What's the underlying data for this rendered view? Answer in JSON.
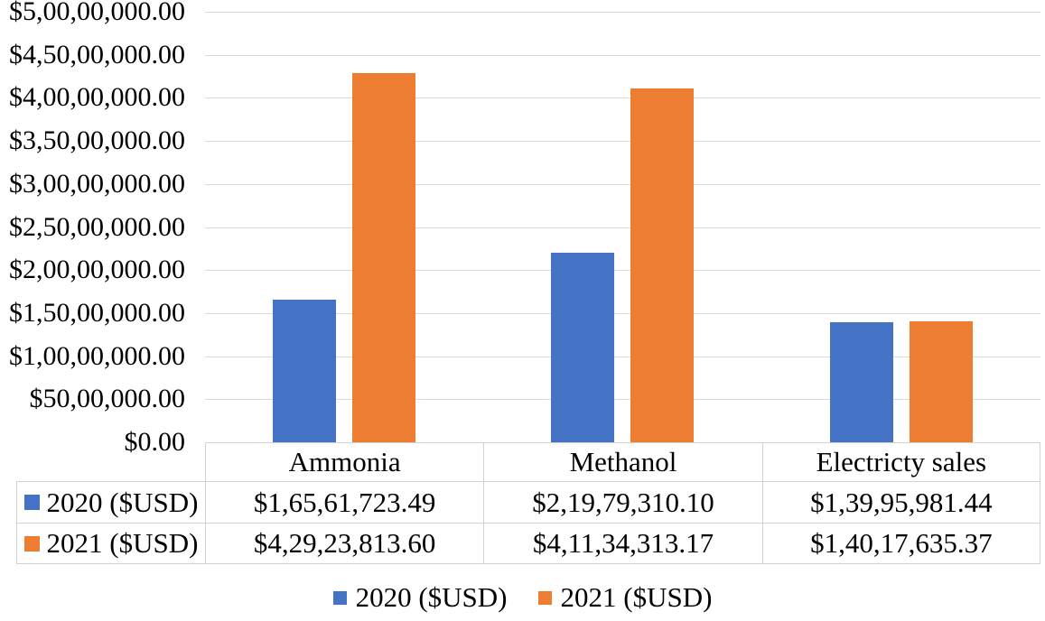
{
  "colors": {
    "series_2020": "#4472C4",
    "series_2021": "#ED7D31",
    "gridline": "#D9D9D9",
    "table_border": "#D2D2D2",
    "text": "#000000",
    "background": "#FFFFFF"
  },
  "y_axis": {
    "ticks": [
      "$5,00,00,000.00",
      "$4,50,00,000.00",
      "$4,00,00,000.00",
      "$3,50,00,000.00",
      "$3,00,00,000.00",
      "$2,50,00,000.00",
      "$2,00,00,000.00",
      "$1,50,00,000.00",
      "$1,00,00,000.00",
      "$50,00,000.00",
      "$0.00"
    ]
  },
  "chart_data": {
    "type": "bar",
    "title": "",
    "xlabel": "",
    "ylabel": "",
    "categories": [
      "Ammonia",
      "Methanol",
      "Electricty sales"
    ],
    "series": [
      {
        "name": "2020 ($USD)",
        "color": "#4472C4",
        "values": [
          16561723.49,
          21979310.1,
          13995981.44
        ]
      },
      {
        "name": "2021 ($USD)",
        "color": "#ED7D31",
        "values": [
          42923813.6,
          41134313.17,
          14017635.37
        ]
      }
    ],
    "ylim": [
      0,
      50000000
    ],
    "y_tick_step": 5000000,
    "grid": true,
    "legend_position": "bottom",
    "data_table_shown": true
  },
  "table": {
    "rows": [
      {
        "label": "2020 ($USD)",
        "values": [
          "$1,65,61,723.49",
          "$2,19,79,310.10",
          "$1,39,95,981.44"
        ]
      },
      {
        "label": "2021 ($USD)",
        "values": [
          "$4,29,23,813.60",
          "$4,11,34,313.17",
          "$1,40,17,635.37"
        ]
      }
    ]
  },
  "legend": {
    "items": [
      {
        "label": "2020 ($USD)"
      },
      {
        "label": "2021 ($USD)"
      }
    ]
  }
}
